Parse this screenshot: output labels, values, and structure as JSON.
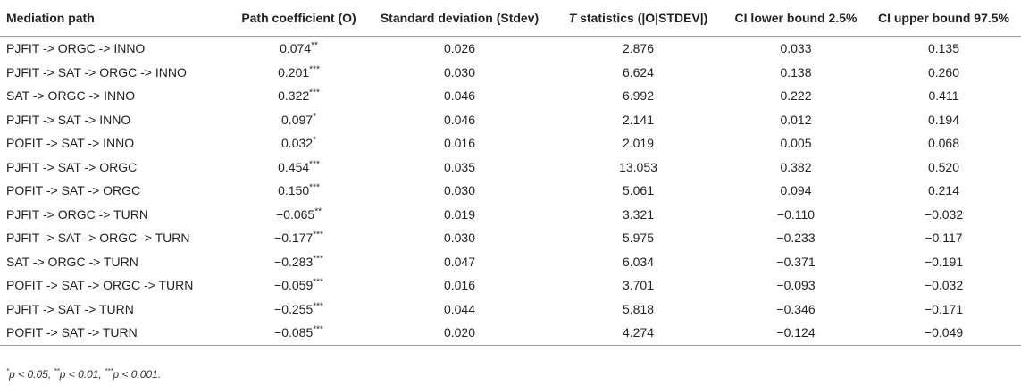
{
  "table": {
    "headers": {
      "path": "Mediation path",
      "coef": "Path coefficient (O)",
      "stdev": "Standard deviation (Stdev)",
      "t_prefix": "T",
      "t_rest": " statistics (|O|STDEV|)",
      "ci_low": "CI lower bound 2.5%",
      "ci_high": "CI upper bound 97.5%"
    },
    "rows": [
      {
        "path": "PJFIT -> ORGC -> INNO",
        "coef": "0.074",
        "sig": "**",
        "stdev": "0.026",
        "t": "2.876",
        "ci_low": "0.033",
        "ci_high": "0.135"
      },
      {
        "path": "PJFIT -> SAT -> ORGC -> INNO",
        "coef": "0.201",
        "sig": "***",
        "stdev": "0.030",
        "t": "6.624",
        "ci_low": "0.138",
        "ci_high": "0.260"
      },
      {
        "path": "SAT -> ORGC -> INNO",
        "coef": "0.322",
        "sig": "***",
        "stdev": "0.046",
        "t": "6.992",
        "ci_low": "0.222",
        "ci_high": "0.411"
      },
      {
        "path": "PJFIT -> SAT -> INNO",
        "coef": "0.097",
        "sig": "*",
        "stdev": "0.046",
        "t": "2.141",
        "ci_low": "0.012",
        "ci_high": "0.194"
      },
      {
        "path": "POFIT -> SAT -> INNO",
        "coef": "0.032",
        "sig": "*",
        "stdev": "0.016",
        "t": "2.019",
        "ci_low": "0.005",
        "ci_high": "0.068"
      },
      {
        "path": "PJFIT -> SAT -> ORGC",
        "coef": "0.454",
        "sig": "***",
        "stdev": "0.035",
        "t": "13.053",
        "ci_low": "0.382",
        "ci_high": "0.520"
      },
      {
        "path": "POFIT -> SAT -> ORGC",
        "coef": "0.150",
        "sig": "***",
        "stdev": "0.030",
        "t": "5.061",
        "ci_low": "0.094",
        "ci_high": "0.214"
      },
      {
        "path": "PJFIT -> ORGC -> TURN",
        "coef": "−0.065",
        "sig": "**",
        "stdev": "0.019",
        "t": "3.321",
        "ci_low": "−0.110",
        "ci_high": "−0.032"
      },
      {
        "path": "PJFIT -> SAT -> ORGC -> TURN",
        "coef": "−0.177",
        "sig": "***",
        "stdev": "0.030",
        "t": "5.975",
        "ci_low": "−0.233",
        "ci_high": "−0.117"
      },
      {
        "path": "SAT -> ORGC -> TURN",
        "coef": "−0.283",
        "sig": "***",
        "stdev": "0.047",
        "t": "6.034",
        "ci_low": "−0.371",
        "ci_high": "−0.191"
      },
      {
        "path": "POFIT -> SAT -> ORGC -> TURN",
        "coef": "−0.059",
        "sig": "***",
        "stdev": "0.016",
        "t": "3.701",
        "ci_low": "−0.093",
        "ci_high": "−0.032"
      },
      {
        "path": "PJFIT -> SAT -> TURN",
        "coef": "−0.255",
        "sig": "***",
        "stdev": "0.044",
        "t": "5.818",
        "ci_low": "−0.346",
        "ci_high": "−0.171"
      },
      {
        "path": "POFIT -> SAT -> TURN",
        "coef": "−0.085",
        "sig": "***",
        "stdev": "0.020",
        "t": "4.274",
        "ci_low": "−0.124",
        "ci_high": "−0.049"
      }
    ]
  },
  "footnote": {
    "s1": "*",
    "t1": "p < 0.05, ",
    "s2": "**",
    "t2": "p < 0.01, ",
    "s3": "***",
    "t3": "p < 0.001."
  }
}
